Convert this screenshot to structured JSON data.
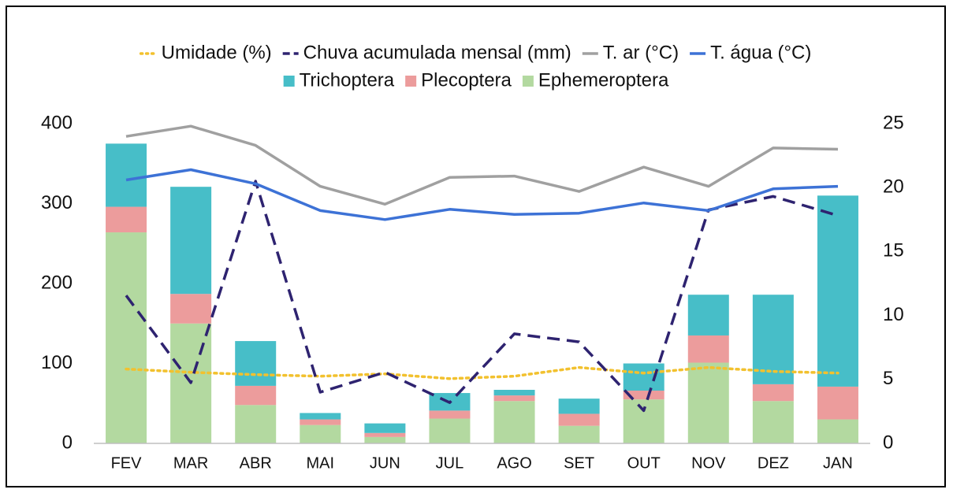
{
  "chart_data": {
    "type": "combo",
    "categories": [
      "FEV",
      "MAR",
      "ABR",
      "MAI",
      "JUN",
      "JUL",
      "AGO",
      "SET",
      "OUT",
      "NOV",
      "DEZ",
      "JAN"
    ],
    "series": [
      {
        "name": "Umidade (%)",
        "type": "line",
        "dash": "dotted",
        "color": "#f2c12e",
        "values": [
          93,
          89,
          86,
          84,
          87,
          81,
          84,
          95,
          88,
          95,
          90,
          88
        ]
      },
      {
        "name": "Chuva acumulada mensal (mm)",
        "type": "line",
        "dash": "dashed",
        "color": "#2e2370",
        "values": [
          185,
          76,
          328,
          64,
          89,
          51,
          137,
          127,
          41,
          292,
          309,
          285
        ]
      },
      {
        "name": "T. ar (°C)",
        "type": "line",
        "dash": "solid",
        "color": "#a0a0a0",
        "axis": "y2",
        "values": [
          24.0,
          24.8,
          23.3,
          20.1,
          18.7,
          20.8,
          20.9,
          19.7,
          21.6,
          20.1,
          23.1,
          23.0
        ]
      },
      {
        "name": "T. água (°C)",
        "type": "line",
        "dash": "solid",
        "color": "#3d72d6",
        "axis": "y2",
        "values": [
          20.6,
          21.4,
          20.3,
          18.2,
          17.5,
          18.3,
          17.9,
          18.0,
          18.8,
          18.2,
          19.9,
          20.1
        ]
      },
      {
        "name": "Trichoptera",
        "type": "bar",
        "color": "#47bec8",
        "values": [
          79,
          134,
          56,
          8,
          12,
          22,
          7,
          19,
          34,
          51,
          112,
          239
        ]
      },
      {
        "name": "Plecoptera",
        "type": "bar",
        "color": "#ec9c9c",
        "values": [
          32,
          37,
          24,
          7,
          5,
          10,
          7,
          15,
          11,
          34,
          21,
          41
        ]
      },
      {
        "name": "Ephemeroptera",
        "type": "bar",
        "color": "#b3d9a0",
        "values": [
          264,
          150,
          48,
          23,
          8,
          31,
          53,
          22,
          55,
          101,
          53,
          30
        ]
      }
    ],
    "ylim": [
      0,
      400
    ],
    "yticks": [
      0,
      100,
      200,
      300,
      400
    ],
    "y2lim": [
      0,
      25
    ],
    "y2ticks": [
      0,
      5,
      10,
      15,
      20,
      25
    ],
    "grid": false
  }
}
